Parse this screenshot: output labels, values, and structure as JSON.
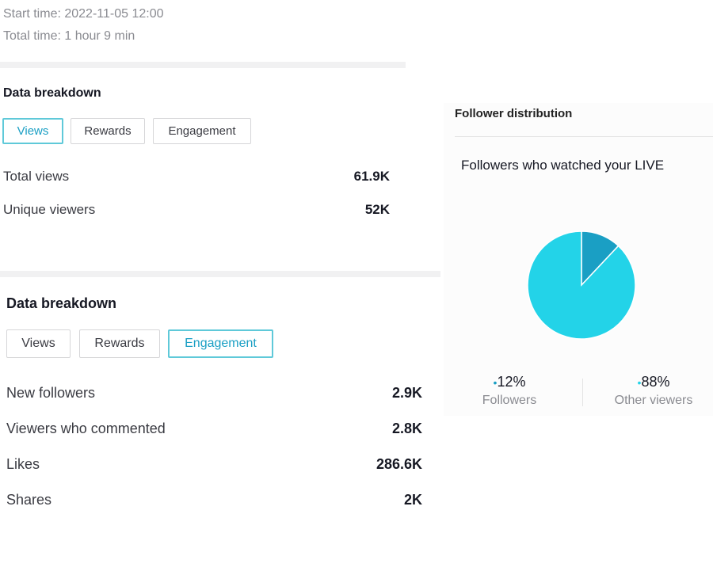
{
  "summary": {
    "start_time": "Start time: 2022-11-05 12:00",
    "total_time": "Total time: 1 hour 9 min"
  },
  "views_panel": {
    "title": "Data breakdown",
    "tabs": [
      "Views",
      "Rewards",
      "Engagement"
    ],
    "active_tab": 0,
    "rows": [
      [
        "Total views",
        "61.9K"
      ],
      [
        "Unique viewers",
        "52K"
      ]
    ]
  },
  "engagement_panel": {
    "title": "Data breakdown",
    "tabs": [
      "Views",
      "Rewards",
      "Engagement"
    ],
    "active_tab": 2,
    "rows": [
      [
        "New followers",
        "2.9K"
      ],
      [
        "Viewers who commented",
        "2.8K"
      ],
      [
        "Likes",
        "286.6K"
      ],
      [
        "Shares",
        "2K"
      ]
    ]
  },
  "follower_distribution": {
    "title": "Follower distribution",
    "subtitle": "Followers who watched your LIVE",
    "slices": [
      {
        "label": "Followers",
        "value": 12,
        "value_label": "12%",
        "color": "#1a9fc4"
      },
      {
        "label": "Other viewers",
        "value": 88,
        "value_label": "88%",
        "color": "#23d3e8"
      }
    ]
  }
}
